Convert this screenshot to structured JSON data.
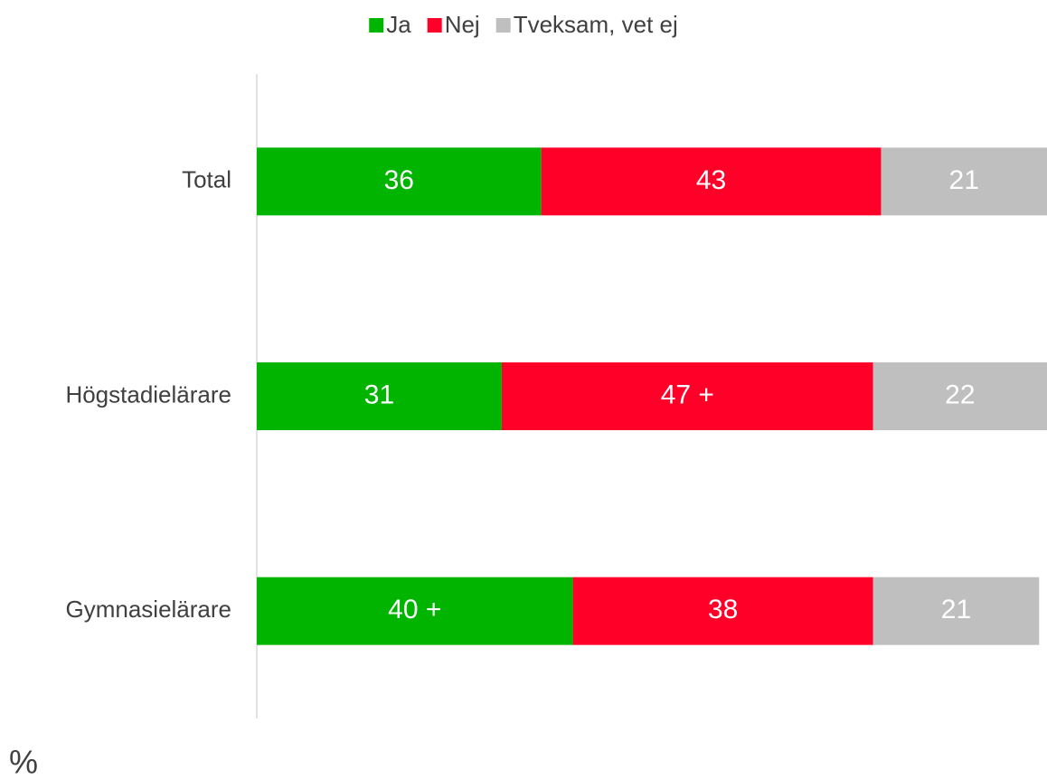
{
  "chart_data": {
    "type": "stacked-bar-horizontal",
    "categories": [
      "Total",
      "Högstadielärare",
      "Gymnasielärare"
    ],
    "series": [
      {
        "name": "Ja",
        "color": "#00b400",
        "values": [
          36,
          31,
          40
        ],
        "value_labels": [
          "36",
          "31",
          "40 +"
        ]
      },
      {
        "name": "Nej",
        "color": "#ff0029",
        "values": [
          43,
          47,
          38
        ],
        "value_labels": [
          "43",
          "47 +",
          "38"
        ]
      },
      {
        "name": "Tveksam, vet ej",
        "color": "#bfbfbf",
        "values": [
          21,
          22,
          21
        ],
        "value_labels": [
          "21",
          "22",
          "21"
        ]
      }
    ],
    "xlim": [
      0,
      100
    ],
    "axis_label": "%",
    "legend": "top"
  }
}
